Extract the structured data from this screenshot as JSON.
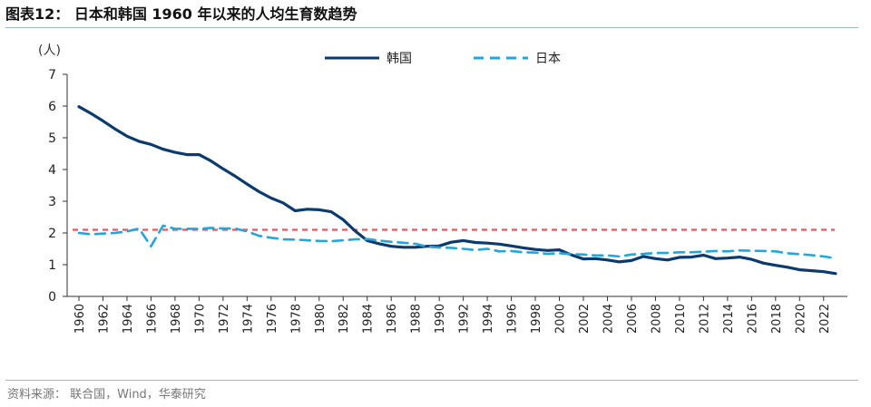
{
  "header": {
    "title": "图表12：  日本和韩国 1960 年以来的人均生育数趋势"
  },
  "source": "资料来源：  联合国，Wind，华泰研究",
  "colors": {
    "korea": "#0b3a6e",
    "japan": "#23a6dd",
    "reference": "#e8575a",
    "axis": "#333333"
  },
  "chart_data": {
    "type": "line",
    "ylabel": "(人)",
    "ylim": [
      0,
      7
    ],
    "yticks": [
      0,
      1,
      2,
      3,
      4,
      5,
      6,
      7
    ],
    "xlim": [
      1960,
      2023
    ],
    "xticks": [
      1960,
      1962,
      1964,
      1966,
      1968,
      1970,
      1972,
      1974,
      1976,
      1978,
      1980,
      1982,
      1984,
      1986,
      1988,
      1990,
      1992,
      1994,
      1996,
      1998,
      2000,
      2002,
      2004,
      2006,
      2008,
      2010,
      2012,
      2014,
      2016,
      2018,
      2020,
      2022
    ],
    "legend_position": "top-center",
    "reference_line": {
      "y": 2.1
    },
    "series": [
      {
        "name": "韩国",
        "style": "solid",
        "x": [
          1960,
          1961,
          1962,
          1963,
          1964,
          1965,
          1966,
          1967,
          1968,
          1969,
          1970,
          1971,
          1972,
          1973,
          1974,
          1975,
          1976,
          1977,
          1978,
          1979,
          1980,
          1981,
          1982,
          1983,
          1984,
          1985,
          1986,
          1987,
          1988,
          1989,
          1990,
          1991,
          1992,
          1993,
          1994,
          1995,
          1996,
          1997,
          1998,
          1999,
          2000,
          2001,
          2002,
          2003,
          2004,
          2005,
          2006,
          2007,
          2008,
          2009,
          2010,
          2011,
          2012,
          2013,
          2014,
          2015,
          2016,
          2017,
          2018,
          2019,
          2020,
          2021,
          2022,
          2023
        ],
        "values": [
          5.98,
          5.77,
          5.53,
          5.28,
          5.05,
          4.89,
          4.79,
          4.64,
          4.54,
          4.47,
          4.47,
          4.27,
          4.02,
          3.79,
          3.54,
          3.3,
          3.1,
          2.95,
          2.7,
          2.75,
          2.73,
          2.67,
          2.42,
          2.06,
          1.76,
          1.66,
          1.58,
          1.55,
          1.55,
          1.58,
          1.59,
          1.71,
          1.76,
          1.7,
          1.68,
          1.65,
          1.59,
          1.53,
          1.48,
          1.45,
          1.47,
          1.31,
          1.18,
          1.19,
          1.15,
          1.09,
          1.13,
          1.26,
          1.19,
          1.15,
          1.23,
          1.24,
          1.3,
          1.19,
          1.21,
          1.24,
          1.17,
          1.05,
          0.98,
          0.92,
          0.84,
          0.81,
          0.78,
          0.72
        ]
      },
      {
        "name": "日本",
        "style": "dashed",
        "x": [
          1960,
          1961,
          1962,
          1963,
          1964,
          1965,
          1966,
          1967,
          1968,
          1969,
          1970,
          1971,
          1972,
          1973,
          1974,
          1975,
          1976,
          1977,
          1978,
          1979,
          1980,
          1981,
          1982,
          1983,
          1984,
          1985,
          1986,
          1987,
          1988,
          1989,
          1990,
          1991,
          1992,
          1993,
          1994,
          1995,
          1996,
          1997,
          1998,
          1999,
          2000,
          2001,
          2002,
          2003,
          2004,
          2005,
          2006,
          2007,
          2008,
          2009,
          2010,
          2011,
          2012,
          2013,
          2014,
          2015,
          2016,
          2017,
          2018,
          2019,
          2020,
          2021,
          2022,
          2023
        ],
        "values": [
          2.0,
          1.96,
          1.98,
          2.0,
          2.05,
          2.14,
          1.58,
          2.23,
          2.13,
          2.13,
          2.13,
          2.16,
          2.14,
          2.14,
          2.05,
          1.91,
          1.85,
          1.8,
          1.79,
          1.77,
          1.75,
          1.74,
          1.77,
          1.8,
          1.81,
          1.76,
          1.72,
          1.69,
          1.66,
          1.57,
          1.54,
          1.53,
          1.5,
          1.46,
          1.5,
          1.42,
          1.43,
          1.39,
          1.38,
          1.34,
          1.36,
          1.33,
          1.32,
          1.29,
          1.29,
          1.26,
          1.32,
          1.34,
          1.37,
          1.37,
          1.39,
          1.39,
          1.41,
          1.43,
          1.42,
          1.45,
          1.44,
          1.43,
          1.42,
          1.36,
          1.33,
          1.3,
          1.26,
          1.2
        ]
      }
    ]
  }
}
